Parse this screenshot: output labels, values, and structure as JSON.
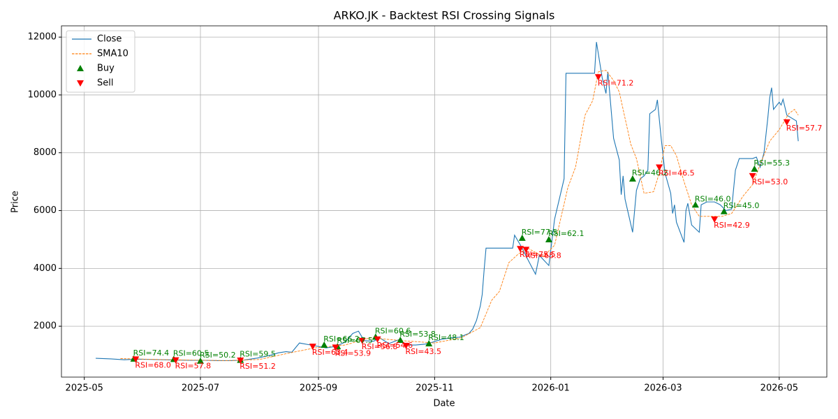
{
  "chart_data": {
    "type": "line",
    "title": "ARKO.JK - Backtest RSI Crossing Signals",
    "xlabel": "Date",
    "ylabel": "Price",
    "xlim": [
      "2025-04-19",
      "2026-05-26"
    ],
    "xticks": [
      "2025-05",
      "2025-07",
      "2025-09",
      "2025-11",
      "2026-01",
      "2026-03",
      "2026-05"
    ],
    "ylim": [
      240,
      12390
    ],
    "yticks": [
      2000,
      4000,
      6000,
      8000,
      10000,
      12000
    ],
    "grid": true,
    "legend": "upper left",
    "series": [
      {
        "name": "Close",
        "type": "line",
        "color": "#1f77b4",
        "style": "solid",
        "x": [
          "2025-05-07",
          "2025-05-15",
          "2025-05-22",
          "2025-05-29",
          "2025-06-05",
          "2025-06-12",
          "2025-06-19",
          "2025-06-26",
          "2025-07-03",
          "2025-07-10",
          "2025-07-17",
          "2025-07-24",
          "2025-07-31",
          "2025-08-07",
          "2025-08-11",
          "2025-08-15",
          "2025-08-18",
          "2025-08-22",
          "2025-08-27",
          "2025-09-01",
          "2025-09-05",
          "2025-09-10",
          "2025-09-15",
          "2025-09-19",
          "2025-09-22",
          "2025-09-25",
          "2025-09-30",
          "2025-10-03",
          "2025-10-08",
          "2025-10-13",
          "2025-10-17",
          "2025-10-22",
          "2025-10-27",
          "2025-10-31",
          "2025-11-05",
          "2025-11-10",
          "2025-11-14",
          "2025-11-19",
          "2025-11-21",
          "2025-11-23",
          "2025-11-25",
          "2025-11-26",
          "2025-11-27",
          "2025-11-28",
          "2025-12-12",
          "2025-12-13",
          "2025-12-17",
          "2025-12-20",
          "2025-12-24",
          "2025-12-26",
          "2025-12-31",
          "2026-01-03",
          "2026-01-08",
          "2026-01-09",
          "2026-01-24",
          "2026-01-25",
          "2026-01-28",
          "2026-01-30",
          "2026-01-31",
          "2026-02-03",
          "2026-02-06",
          "2026-02-07",
          "2026-02-08",
          "2026-02-09",
          "2026-02-13",
          "2026-02-15",
          "2026-02-17",
          "2026-02-19",
          "2026-02-21",
          "2026-02-22",
          "2026-02-25",
          "2026-02-26",
          "2026-02-28",
          "2026-03-02",
          "2026-03-05",
          "2026-03-06",
          "2026-03-07",
          "2026-03-08",
          "2026-03-12",
          "2026-03-13",
          "2026-03-14",
          "2026-03-16",
          "2026-03-20",
          "2026-03-21",
          "2026-03-24",
          "2026-03-28",
          "2026-03-31",
          "2026-04-03",
          "2026-04-06",
          "2026-04-08",
          "2026-04-10",
          "2026-04-12",
          "2026-04-17",
          "2026-04-19",
          "2026-04-21",
          "2026-04-23",
          "2026-04-25",
          "2026-04-26",
          "2026-04-27",
          "2026-04-28",
          "2026-05-01",
          "2026-05-02",
          "2026-05-03",
          "2026-05-05",
          "2026-05-10",
          "2026-05-11"
        ],
        "values": [
          890,
          870,
          840,
          860,
          850,
          840,
          830,
          820,
          820,
          810,
          810,
          830,
          900,
          1000,
          1080,
          1120,
          1100,
          1420,
          1360,
          1300,
          1250,
          1300,
          1450,
          1750,
          1830,
          1500,
          1480,
          1600,
          1400,
          1530,
          1350,
          1350,
          1380,
          1450,
          1550,
          1600,
          1620,
          1750,
          1900,
          2200,
          2700,
          3100,
          3950,
          4700,
          4700,
          5150,
          4700,
          4300,
          3800,
          4450,
          4100,
          5700,
          7100,
          10750,
          10750,
          11830,
          10600,
          10050,
          10800,
          8500,
          7750,
          6550,
          7200,
          6400,
          5250,
          6700,
          7100,
          7200,
          7400,
          9350,
          9500,
          9830,
          8500,
          7300,
          6600,
          5900,
          6200,
          5600,
          4900,
          6000,
          6250,
          5500,
          5250,
          6200,
          6300,
          6300,
          6200,
          6000,
          6050,
          7400,
          7800,
          7800,
          7800,
          7850,
          7500,
          8000,
          9200,
          9900,
          10250,
          9500,
          9750,
          9650,
          9850,
          9300,
          9100,
          8400
        ]
      },
      {
        "name": "SMA10",
        "type": "line",
        "color": "#ff7f0e",
        "style": "dashed",
        "x": [
          "2025-05-20",
          "2025-06-15",
          "2025-07-15",
          "2025-08-01",
          "2025-08-15",
          "2025-08-30",
          "2025-09-15",
          "2025-09-28",
          "2025-10-15",
          "2025-11-01",
          "2025-11-15",
          "2025-11-25",
          "2025-12-01",
          "2025-12-05",
          "2025-12-10",
          "2025-12-15",
          "2025-12-20",
          "2025-12-28",
          "2026-01-03",
          "2026-01-10",
          "2026-01-14",
          "2026-01-19",
          "2026-01-23",
          "2026-01-26",
          "2026-01-30",
          "2026-02-03",
          "2026-02-06",
          "2026-02-12",
          "2026-02-15",
          "2026-02-19",
          "2026-02-24",
          "2026-02-27",
          "2026-03-02",
          "2026-03-05",
          "2026-03-08",
          "2026-03-12",
          "2026-03-16",
          "2026-03-20",
          "2026-03-25",
          "2026-04-01",
          "2026-04-06",
          "2026-04-12",
          "2026-04-17",
          "2026-04-21",
          "2026-04-26",
          "2026-05-01",
          "2026-05-06",
          "2026-05-09",
          "2026-05-11"
        ],
        "values": [
          880,
          840,
          810,
          850,
          1050,
          1250,
          1350,
          1600,
          1500,
          1420,
          1600,
          1950,
          2900,
          3200,
          4200,
          4500,
          4700,
          4400,
          4800,
          6800,
          7500,
          9300,
          9800,
          10800,
          10850,
          10500,
          10100,
          8300,
          7800,
          6600,
          6650,
          7300,
          8250,
          8250,
          7900,
          7000,
          6200,
          5800,
          5800,
          5800,
          5900,
          6500,
          6900,
          7600,
          8400,
          8800,
          9350,
          9500,
          9300
        ]
      },
      {
        "name": "Buy",
        "type": "scatter",
        "marker": "up",
        "color": "#008000",
        "x": [
          "2025-05-27",
          "2025-06-17",
          "2025-07-01",
          "2025-07-22",
          "2025-09-04",
          "2025-09-11",
          "2025-10-01",
          "2025-10-14",
          "2025-10-29",
          "2025-12-17",
          "2025-12-31",
          "2026-02-13",
          "2026-03-18",
          "2026-04-02",
          "2026-04-18"
        ],
        "values": [
          870,
          860,
          800,
          830,
          1350,
          1300,
          1630,
          1520,
          1400,
          5050,
          5000,
          7100,
          6200,
          5970,
          7440
        ],
        "labels": [
          "RSI=74.4",
          "RSI=60.5",
          "RSI=50.2",
          "RSI=59.5",
          "RSI=66.2",
          "RSI=67.5",
          "RSI=60.6",
          "RSI=53.8",
          "RSI=48.1",
          "RSI=77.5",
          "RSI=62.1",
          "RSI=46.2",
          "RSI=46.0",
          "RSI=45.0",
          "RSI=55.3"
        ]
      },
      {
        "name": "Sell",
        "type": "scatter",
        "marker": "down",
        "color": "#ff0000",
        "x": [
          "2025-05-28",
          "2025-06-18",
          "2025-07-22",
          "2025-08-29",
          "2025-09-10",
          "2025-09-24",
          "2025-10-02",
          "2025-10-17",
          "2025-12-16",
          "2025-12-19",
          "2026-01-26",
          "2026-02-27",
          "2026-03-28",
          "2026-04-17",
          "2026-05-05"
        ],
        "values": [
          860,
          830,
          820,
          1300,
          1270,
          1500,
          1550,
          1330,
          4680,
          4650,
          10620,
          7500,
          5700,
          7200,
          9060
        ],
        "labels": [
          "RSI=68.0",
          "RSI=57.8",
          "RSI=51.2",
          "RSI=63.4",
          "RSI=53.9",
          "RSI=56.8",
          "RSI=54.6",
          "RSI=43.5",
          "RSI=75.5",
          "RSI=65.8",
          "RSI=71.2",
          "RSI=46.5",
          "RSI=42.9",
          "RSI=53.0",
          "RSI=57.7"
        ]
      }
    ]
  }
}
